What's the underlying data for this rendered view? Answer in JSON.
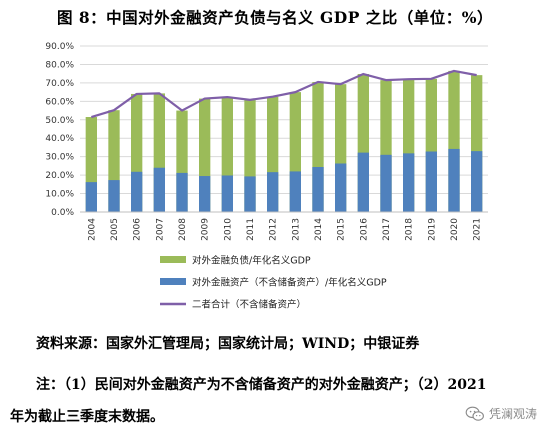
{
  "figure": {
    "title": "图 8：中国对外金融资产负债与名义 GDP 之比（单位：%）"
  },
  "chart_data": {
    "type": "bar",
    "stacked_overlay": true,
    "categories": [
      "2004",
      "2005",
      "2006",
      "2007",
      "2008",
      "2009",
      "2010",
      "2011",
      "2012",
      "2013",
      "2014",
      "2015",
      "2016",
      "2017",
      "2018",
      "2019",
      "2020",
      "2021"
    ],
    "ylim": [
      0,
      90
    ],
    "yticks": [
      "0.0%",
      "10.0%",
      "20.0%",
      "30.0%",
      "40.0%",
      "50.0%",
      "60.0%",
      "70.0%",
      "80.0%",
      "90.0%"
    ],
    "ytick_values": [
      0,
      10,
      20,
      30,
      40,
      50,
      60,
      70,
      80,
      90
    ],
    "grid": true,
    "legend_position": "bottom",
    "series": [
      {
        "name": "对外金融负债/年化名义GDP",
        "kind": "bar",
        "color": "#9bbb59",
        "values": [
          51.5,
          55.2,
          64.0,
          64.3,
          55.0,
          61.5,
          62.3,
          60.8,
          62.5,
          65.0,
          70.5,
          69.3,
          74.8,
          71.5,
          72.0,
          72.2,
          76.5,
          74.2
        ]
      },
      {
        "name": "对外金融资产（不含储备资产）/年化名义GDP",
        "kind": "bar",
        "color": "#4f81bd",
        "values": [
          16.2,
          17.3,
          21.8,
          24.0,
          21.2,
          19.5,
          19.8,
          19.3,
          21.6,
          22.0,
          24.4,
          26.3,
          32.2,
          31.0,
          31.8,
          32.8,
          34.2,
          33.0
        ]
      },
      {
        "name": "二者合计（不含储备资产）",
        "kind": "line",
        "color": "#7f5fa8",
        "values": [
          51.5,
          55.2,
          64.0,
          64.3,
          55.0,
          61.5,
          62.3,
          60.8,
          62.5,
          65.0,
          70.5,
          69.3,
          74.8,
          71.5,
          72.0,
          72.2,
          76.5,
          74.2
        ]
      }
    ]
  },
  "footer": {
    "source": "资料来源：国家外汇管理局；国家统计局；WIND；中银证券",
    "note_line1": "注：（1）民间对外金融资产为不含储备资产的对外金融资产；（2）2021",
    "note_line2": "年为截止三季度末数据。",
    "watermark": "凭澜观涛",
    "watermark_icon": "wechat-icon"
  }
}
